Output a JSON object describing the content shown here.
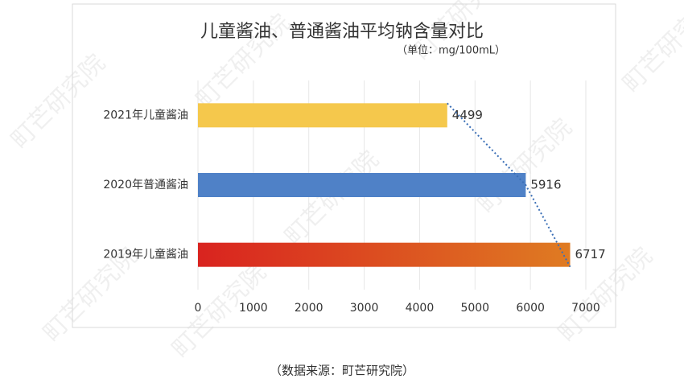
{
  "chart_data": {
    "type": "hbar",
    "title": "儿童酱油、普通酱油平均钠含量对比",
    "subtitle": "（单位：mg/100mL）",
    "categories": [
      "2021年儿童酱油",
      "2020年普通酱油",
      "2019年儿童酱油"
    ],
    "values": [
      4499,
      5916,
      6717
    ],
    "colors": [
      "#f5c84c",
      "#4f81c7",
      [
        "#d9231f",
        "#df7b22"
      ]
    ],
    "xlim": [
      0,
      7000
    ],
    "xticks": [
      0,
      1000,
      2000,
      3000,
      4000,
      5000,
      6000,
      7000
    ],
    "grid": true,
    "trend_line": true,
    "source": "（数据来源：町芒研究院）",
    "watermark": "町芒研究院"
  }
}
